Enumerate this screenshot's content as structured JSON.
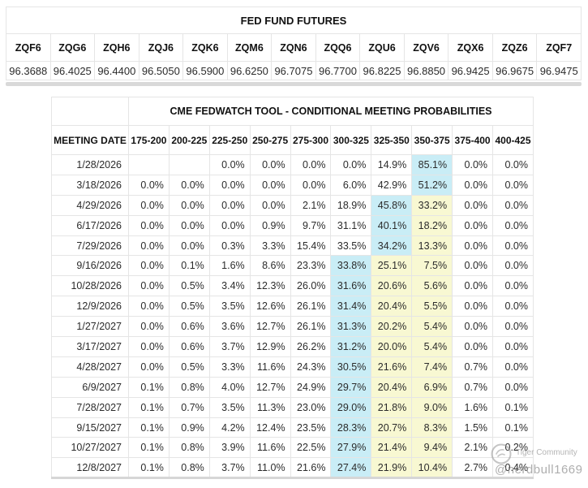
{
  "futures": {
    "title": "FED FUND FUTURES",
    "columns": [
      "ZQF6",
      "ZQG6",
      "ZQH6",
      "ZQJ6",
      "ZQK6",
      "ZQM6",
      "ZQN6",
      "ZQQ6",
      "ZQU6",
      "ZQV6",
      "ZQX6",
      "ZQZ6",
      "ZQF7"
    ],
    "values": [
      "96.3688",
      "96.4025",
      "96.4400",
      "96.5050",
      "96.5900",
      "96.6250",
      "96.7075",
      "96.7700",
      "96.8225",
      "96.8850",
      "96.9425",
      "96.9675",
      "96.9475"
    ]
  },
  "fedwatch": {
    "title": "CME FEDWATCH TOOL - CONDITIONAL MEETING PROBABILITIES",
    "date_header": "MEETING DATE",
    "rate_headers": [
      "175-200",
      "200-225",
      "225-250",
      "250-275",
      "275-300",
      "300-325",
      "325-350",
      "350-375",
      "375-400",
      "400-425"
    ],
    "rows": [
      {
        "date": "1/28/2026",
        "values": [
          "",
          "",
          "0.0%",
          "0.0%",
          "0.0%",
          "0.0%",
          "14.9%",
          "85.1%",
          "0.0%",
          "0.0%"
        ],
        "highlights": {
          "7": "cyan"
        }
      },
      {
        "date": "3/18/2026",
        "values": [
          "0.0%",
          "0.0%",
          "0.0%",
          "0.0%",
          "0.0%",
          "6.0%",
          "42.9%",
          "51.2%",
          "0.0%",
          "0.0%"
        ],
        "highlights": {
          "7": "cyan"
        }
      },
      {
        "date": "4/29/2026",
        "values": [
          "0.0%",
          "0.0%",
          "0.0%",
          "0.0%",
          "2.1%",
          "18.9%",
          "45.8%",
          "33.2%",
          "0.0%",
          "0.0%"
        ],
        "highlights": {
          "6": "cyan",
          "7": "yellow"
        }
      },
      {
        "date": "6/17/2026",
        "values": [
          "0.0%",
          "0.0%",
          "0.0%",
          "0.9%",
          "9.7%",
          "31.1%",
          "40.1%",
          "18.2%",
          "0.0%",
          "0.0%"
        ],
        "highlights": {
          "6": "cyan",
          "7": "yellow"
        }
      },
      {
        "date": "7/29/2026",
        "values": [
          "0.0%",
          "0.0%",
          "0.3%",
          "3.3%",
          "15.4%",
          "33.5%",
          "34.2%",
          "13.3%",
          "0.0%",
          "0.0%"
        ],
        "highlights": {
          "6": "cyan",
          "7": "yellow"
        }
      },
      {
        "date": "9/16/2026",
        "values": [
          "0.0%",
          "0.1%",
          "1.6%",
          "8.6%",
          "23.3%",
          "33.8%",
          "25.1%",
          "7.5%",
          "0.0%",
          "0.0%"
        ],
        "highlights": {
          "5": "cyan",
          "6": "yellow",
          "7": "yellow"
        }
      },
      {
        "date": "10/28/2026",
        "values": [
          "0.0%",
          "0.5%",
          "3.4%",
          "12.3%",
          "26.0%",
          "31.6%",
          "20.6%",
          "5.6%",
          "0.0%",
          "0.0%"
        ],
        "highlights": {
          "5": "cyan",
          "6": "yellow",
          "7": "yellow"
        }
      },
      {
        "date": "12/9/2026",
        "values": [
          "0.0%",
          "0.5%",
          "3.5%",
          "12.6%",
          "26.1%",
          "31.4%",
          "20.4%",
          "5.5%",
          "0.0%",
          "0.0%"
        ],
        "highlights": {
          "5": "cyan",
          "6": "yellow",
          "7": "yellow"
        }
      },
      {
        "date": "1/27/2027",
        "values": [
          "0.0%",
          "0.6%",
          "3.6%",
          "12.7%",
          "26.1%",
          "31.3%",
          "20.2%",
          "5.4%",
          "0.0%",
          "0.0%"
        ],
        "highlights": {
          "5": "cyan",
          "6": "yellow",
          "7": "yellow"
        }
      },
      {
        "date": "3/17/2027",
        "values": [
          "0.0%",
          "0.6%",
          "3.7%",
          "12.9%",
          "26.2%",
          "31.2%",
          "20.0%",
          "5.4%",
          "0.0%",
          "0.0%"
        ],
        "highlights": {
          "5": "cyan",
          "6": "yellow",
          "7": "yellow"
        }
      },
      {
        "date": "4/28/2027",
        "values": [
          "0.0%",
          "0.5%",
          "3.3%",
          "11.6%",
          "24.3%",
          "30.5%",
          "21.6%",
          "7.4%",
          "0.7%",
          "0.0%"
        ],
        "highlights": {
          "5": "cyan",
          "6": "yellow",
          "7": "yellow"
        }
      },
      {
        "date": "6/9/2027",
        "values": [
          "0.1%",
          "0.8%",
          "4.0%",
          "12.7%",
          "24.9%",
          "29.7%",
          "20.4%",
          "6.9%",
          "0.7%",
          "0.0%"
        ],
        "highlights": {
          "5": "cyan",
          "6": "yellow",
          "7": "yellow"
        }
      },
      {
        "date": "7/28/2027",
        "values": [
          "0.1%",
          "0.7%",
          "3.5%",
          "11.3%",
          "23.0%",
          "29.0%",
          "21.8%",
          "9.0%",
          "1.6%",
          "0.1%"
        ],
        "highlights": {
          "5": "cyan",
          "6": "yellow",
          "7": "yellow"
        }
      },
      {
        "date": "9/15/2027",
        "values": [
          "0.1%",
          "0.9%",
          "4.2%",
          "12.4%",
          "23.5%",
          "28.3%",
          "20.7%",
          "8.3%",
          "1.5%",
          "0.1%"
        ],
        "highlights": {
          "5": "cyan",
          "6": "yellow",
          "7": "yellow"
        }
      },
      {
        "date": "10/27/2027",
        "values": [
          "0.1%",
          "0.8%",
          "3.9%",
          "11.6%",
          "22.5%",
          "27.9%",
          "21.4%",
          "9.4%",
          "2.1%",
          "0.2%"
        ],
        "highlights": {
          "5": "cyan",
          "6": "yellow",
          "7": "yellow"
        }
      },
      {
        "date": "12/8/2027",
        "values": [
          "0.1%",
          "0.8%",
          "3.7%",
          "11.0%",
          "21.6%",
          "27.4%",
          "21.9%",
          "10.4%",
          "2.7%",
          "0.4%"
        ],
        "highlights": {
          "5": "cyan",
          "6": "yellow",
          "7": "yellow"
        }
      }
    ]
  },
  "watermark": {
    "brand": "Tiger Community",
    "handle": "@nerdbull1669"
  },
  "colors": {
    "highlight_cyan": "#c9edf6",
    "highlight_yellow": "#f8f8d2"
  }
}
